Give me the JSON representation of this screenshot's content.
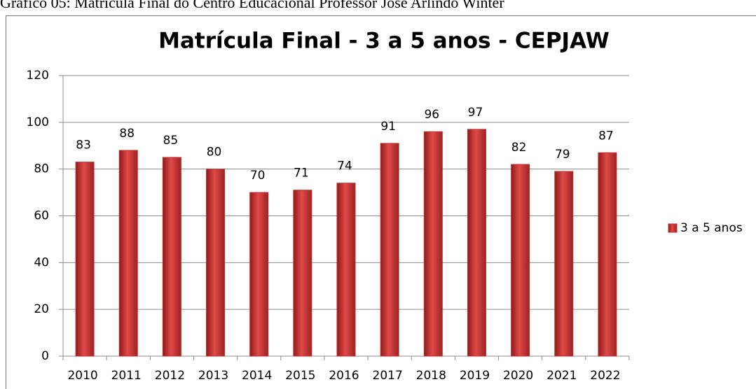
{
  "caption": "Gráfico 05: Matrícula Final do Centro Educacional Professor José Arlindo Winter",
  "chart_data": {
    "type": "bar",
    "title": "Matrícula Final - 3 a 5 anos - CEPJAW",
    "categories": [
      "2010",
      "2011",
      "2012",
      "2013",
      "2014",
      "2015",
      "2016",
      "2017",
      "2018",
      "2019",
      "2020",
      "2021",
      "2022"
    ],
    "series": [
      {
        "name": "3 a 5 anos",
        "color": "#c0302f",
        "values": [
          83,
          88,
          85,
          80,
          70,
          71,
          74,
          91,
          96,
          97,
          82,
          79,
          87
        ]
      }
    ],
    "ylim": [
      0,
      120
    ],
    "yticks": [
      0,
      20,
      40,
      60,
      80,
      100,
      120
    ],
    "grid": true,
    "legend": "right"
  }
}
